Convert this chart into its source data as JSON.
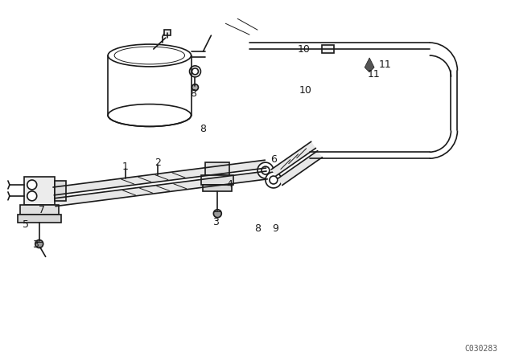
{
  "bg_color": "#ffffff",
  "lc": "#1a1a1a",
  "lw": 1.2,
  "tlw": 0.7,
  "fig_width": 6.4,
  "fig_height": 4.48,
  "dpi": 100,
  "watermark": "C030283"
}
